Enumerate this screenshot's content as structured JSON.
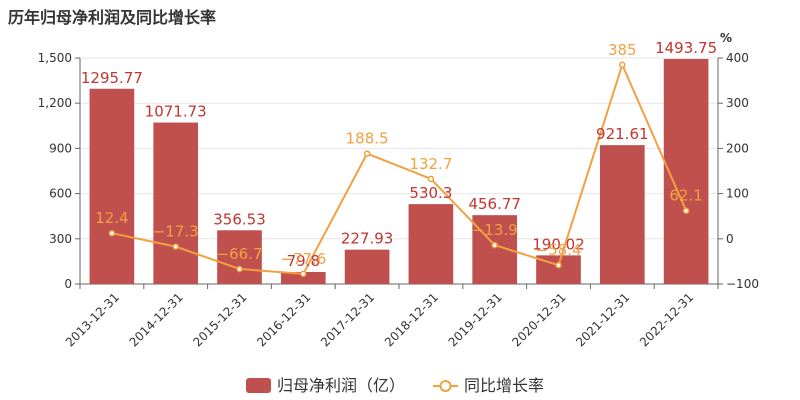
{
  "chart_data": {
    "type": "bar",
    "title": "历年归母净利润及同比增长率",
    "categories": [
      "2013-12-31",
      "2014-12-31",
      "2015-12-31",
      "2016-12-31",
      "2017-12-31",
      "2018-12-31",
      "2019-12-31",
      "2020-12-31",
      "2021-12-31",
      "2022-12-31"
    ],
    "series": [
      {
        "name": "归母净利润（亿）",
        "type": "bar",
        "axis": "left",
        "values": [
          1295.77,
          1071.73,
          356.53,
          79.8,
          227.93,
          530.3,
          456.77,
          190.02,
          921.61,
          1493.75
        ],
        "labels": [
          "1295.77",
          "1071.73",
          "356.53",
          "79.8",
          "227.93",
          "530.3",
          "456.77",
          "190.02",
          "921.61",
          "1493.75"
        ],
        "color": "#c0504d"
      },
      {
        "name": "同比增长率",
        "type": "line",
        "axis": "right",
        "values": [
          12.4,
          -17.3,
          -66.7,
          -77.6,
          188.5,
          132.7,
          -13.9,
          -58.4,
          385,
          62.1
        ],
        "labels": [
          "12.4",
          "−17.3",
          "−66.7",
          "−77.6",
          "188.5",
          "132.7",
          "−13.9",
          "−58.4",
          "385",
          "62.1"
        ],
        "color": "#f2a040"
      }
    ],
    "left_axis": {
      "ylim": [
        0,
        1500
      ],
      "ticks": [
        0,
        300,
        600,
        900,
        1200,
        1500
      ],
      "tick_labels": [
        "0",
        "300",
        "600",
        "900",
        "1,200",
        "1,500"
      ]
    },
    "right_axis": {
      "ylim": [
        -100,
        400
      ],
      "ticks": [
        -100,
        0,
        100,
        200,
        300,
        400
      ],
      "tick_labels": [
        "−100",
        "0",
        "100",
        "200",
        "300",
        "400"
      ],
      "unit": "%"
    },
    "grid": true,
    "legend": "bottom-center",
    "colors": {
      "bar_label": "#c23531",
      "line_label": "#f2a040",
      "axis": "#666666",
      "grid": "#e6e6e6"
    }
  }
}
